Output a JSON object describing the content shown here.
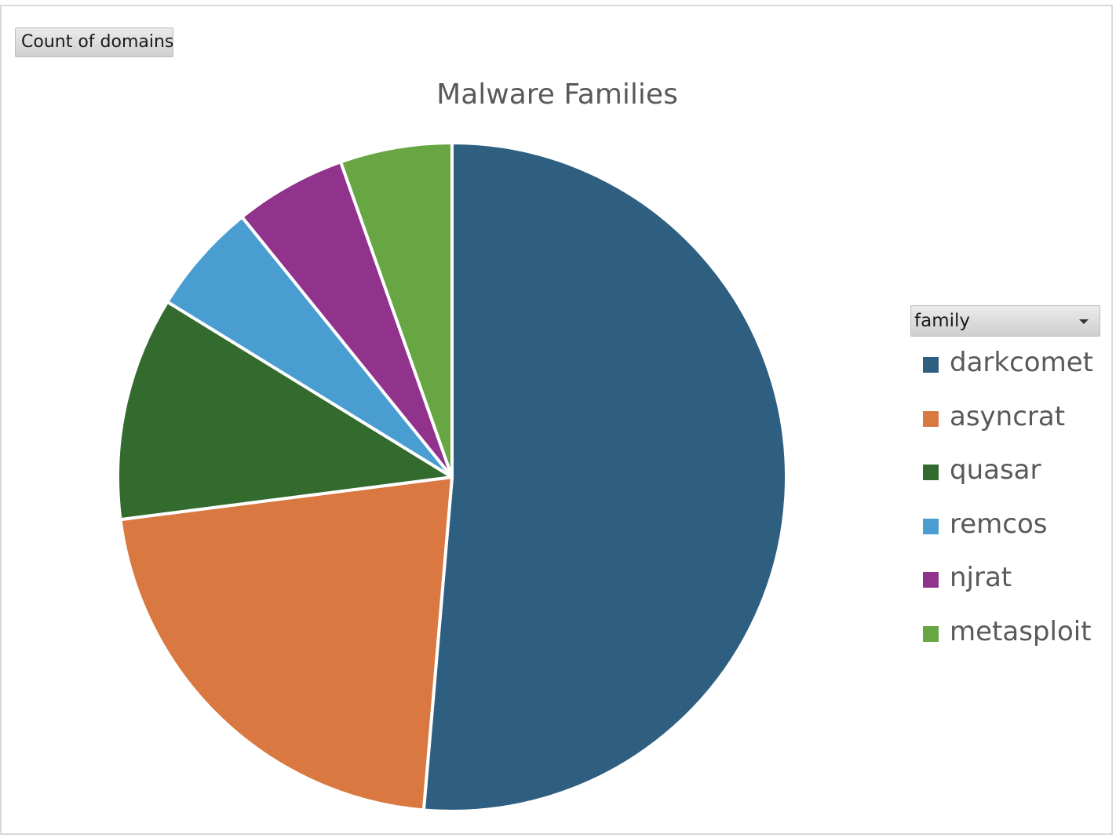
{
  "field_button": {
    "label": "Count of domains"
  },
  "legend_field": {
    "label": "family",
    "icon": "chevron-down-icon"
  },
  "chart_data": {
    "type": "pie",
    "title": "Malware Families",
    "legend_position": "right",
    "categories": [
      "darkcomet",
      "asyncrat",
      "quasar",
      "remcos",
      "njrat",
      "metasploit"
    ],
    "values": [
      9.5,
      4,
      2,
      1,
      1,
      1
    ],
    "colors": [
      "#2e5f80",
      "#d97941",
      "#336b2e",
      "#4a9dd1",
      "#91328c",
      "#67a642"
    ]
  }
}
